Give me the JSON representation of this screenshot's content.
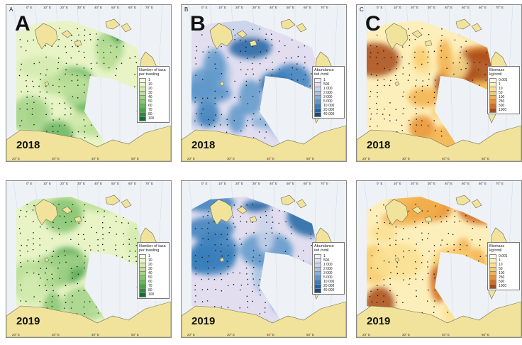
{
  "panels": [
    {
      "id": "A-2018",
      "letter": "A",
      "small": "A",
      "year": "2018",
      "scheme": "green",
      "legend_title": "Number of taxa per trawling",
      "legend_items": [
        "1",
        "10",
        "20",
        "30",
        "40",
        "50",
        "60",
        "70",
        "80",
        "100"
      ]
    },
    {
      "id": "B-2018",
      "letter": "B",
      "small": "B",
      "year": "2018",
      "scheme": "blue",
      "legend_title": "Abundance ind./nmil",
      "legend_items": [
        "1",
        "500",
        "1 000",
        "2 000",
        "3 000",
        "5 000",
        "10 000",
        "20 000",
        "40 000"
      ]
    },
    {
      "id": "C-2018",
      "letter": "C",
      "small": "C",
      "year": "2018",
      "scheme": "orange",
      "legend_title": "Biomass kg/nmil",
      "legend_items": [
        "0.001",
        "1",
        "10",
        "50",
        "100",
        "250",
        "500",
        "1000"
      ]
    },
    {
      "id": "A-2019",
      "letter": "",
      "small": "",
      "year": "2019",
      "scheme": "green",
      "legend_title": "Number of taxa per trawling",
      "legend_items": [
        "1",
        "10",
        "20",
        "30",
        "40",
        "50",
        "60",
        "70",
        "80",
        "100"
      ]
    },
    {
      "id": "B-2019",
      "letter": "",
      "small": "",
      "year": "2019",
      "scheme": "blue",
      "legend_title": "Abundance ind./nmil",
      "legend_items": [
        "1",
        "500",
        "1 000",
        "2 000",
        "3 000",
        "5 000",
        "10 000",
        "20 000",
        "40 000"
      ]
    },
    {
      "id": "C-2019",
      "letter": "",
      "small": "",
      "year": "2019",
      "scheme": "orange",
      "legend_title": "Biomass kg/nmil",
      "legend_items": [
        "0.001",
        "1",
        "10",
        "50",
        "100",
        "250",
        "500",
        "1000"
      ]
    }
  ],
  "top_ticks": [
    "0° E",
    "10° E",
    "20° E",
    "30° E",
    "40° E",
    "50° E",
    "60° E",
    "70° E"
  ],
  "bottom_ticks": [
    "20° E",
    "30° E",
    "40° E",
    "50° E"
  ],
  "palettes": {
    "green": [
      "#f7fbe0",
      "#e8f4c6",
      "#d4ebb0",
      "#bde09a",
      "#a3d488",
      "#86c673",
      "#68b660",
      "#4aa24e",
      "#2e8a3c",
      "#186e2c"
    ],
    "blue": [
      "#f2eef8",
      "#e2def0",
      "#c8d4ea",
      "#a9c4e2",
      "#85b0d8",
      "#5e98ca",
      "#3a7fbb",
      "#2065a3",
      "#114c86"
    ],
    "orange": [
      "#fffbe6",
      "#fdefbb",
      "#fbe093",
      "#f9cb6c",
      "#f3b04c",
      "#e89034",
      "#d26d22",
      "#a84a14"
    ]
  },
  "colors": {
    "land": "#f1e39b",
    "land_stroke": "#6b6b55",
    "sea": "#eef2f7"
  }
}
